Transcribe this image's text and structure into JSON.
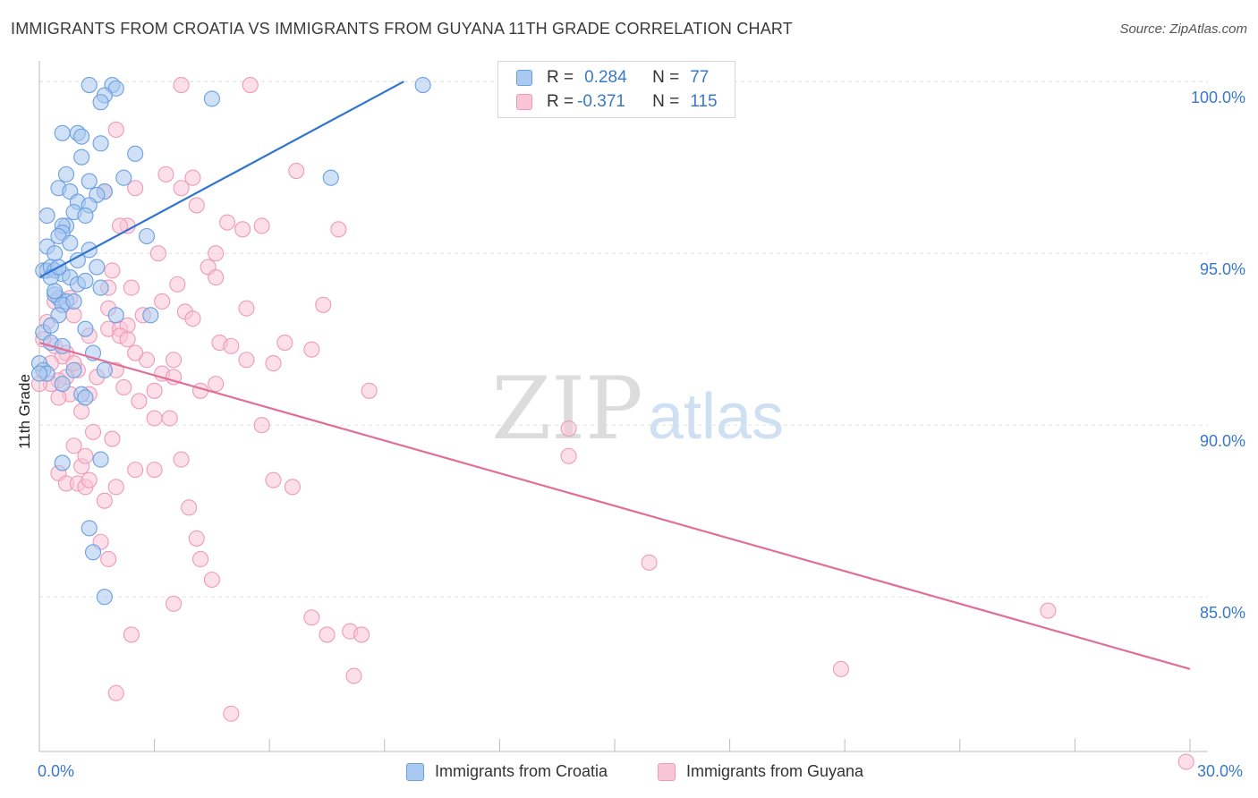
{
  "title": "IMMIGRANTS FROM CROATIA VS IMMIGRANTS FROM GUYANA 11TH GRADE CORRELATION CHART",
  "source": "Source: ZipAtlas.com",
  "watermark": {
    "zip": "ZIP",
    "atlas": "atlas"
  },
  "legend": {
    "r_label": "R =",
    "n_label": "N =",
    "rows": [
      {
        "r": "0.284",
        "n": "77",
        "color": "#a9c9f0",
        "stroke": "#6a9fe0"
      },
      {
        "r": "-0.371",
        "n": "115",
        "color": "#f9c4d6",
        "stroke": "#ee9ab8"
      }
    ]
  },
  "chart_data": {
    "type": "scatter",
    "title": "IMMIGRANTS FROM CROATIA VS IMMIGRANTS FROM GUYANA 11TH GRADE CORRELATION CHART",
    "xlabel": "",
    "ylabel": "11th Grade",
    "xlim": [
      0,
      30
    ],
    "ylim": [
      80.5,
      100.5
    ],
    "x_tick_labels": [
      "0.0%",
      "30.0%"
    ],
    "y_ticks": [
      85,
      90,
      95,
      100
    ],
    "y_tick_labels": [
      "85.0%",
      "90.0%",
      "95.0%",
      "100.0%"
    ],
    "grid": true,
    "legend_position": "top-center",
    "series": [
      {
        "name": "Immigrants from Croatia",
        "color": "#6a9fe0",
        "fill": "#a9c9f0",
        "trend_color": "#2f74d0",
        "trend": {
          "x": [
            0.0,
            9.5
          ],
          "y": [
            94.3,
            100.0
          ]
        },
        "points": [
          [
            1.3,
            99.9
          ],
          [
            1.9,
            99.9
          ],
          [
            2.0,
            99.8
          ],
          [
            1.7,
            99.6
          ],
          [
            1.6,
            99.4
          ],
          [
            4.5,
            99.5
          ],
          [
            10.0,
            99.9
          ],
          [
            1.0,
            98.5
          ],
          [
            1.1,
            98.4
          ],
          [
            1.6,
            98.2
          ],
          [
            0.6,
            98.5
          ],
          [
            2.5,
            97.9
          ],
          [
            1.1,
            97.8
          ],
          [
            0.7,
            97.3
          ],
          [
            1.3,
            97.1
          ],
          [
            7.6,
            97.2
          ],
          [
            2.2,
            97.2
          ],
          [
            0.5,
            96.9
          ],
          [
            1.7,
            96.8
          ],
          [
            0.8,
            96.8
          ],
          [
            1.5,
            96.7
          ],
          [
            1.0,
            96.5
          ],
          [
            1.3,
            96.4
          ],
          [
            0.9,
            96.2
          ],
          [
            1.2,
            96.1
          ],
          [
            0.2,
            96.1
          ],
          [
            0.7,
            95.8
          ],
          [
            0.6,
            95.8
          ],
          [
            0.6,
            95.6
          ],
          [
            0.5,
            95.5
          ],
          [
            2.8,
            95.5
          ],
          [
            0.2,
            95.2
          ],
          [
            1.3,
            95.1
          ],
          [
            0.4,
            95.0
          ],
          [
            1.0,
            94.8
          ],
          [
            0.1,
            94.5
          ],
          [
            0.2,
            94.5
          ],
          [
            0.3,
            94.6
          ],
          [
            0.4,
            94.5
          ],
          [
            0.6,
            94.4
          ],
          [
            0.8,
            94.3
          ],
          [
            1.0,
            94.1
          ],
          [
            1.6,
            94.0
          ],
          [
            0.5,
            93.7
          ],
          [
            0.7,
            93.6
          ],
          [
            0.4,
            93.8
          ],
          [
            0.6,
            93.5
          ],
          [
            0.5,
            93.2
          ],
          [
            2.0,
            93.2
          ],
          [
            2.9,
            93.2
          ],
          [
            0.1,
            92.7
          ],
          [
            0.3,
            92.4
          ],
          [
            0.6,
            92.3
          ],
          [
            1.4,
            92.1
          ],
          [
            0.0,
            91.8
          ],
          [
            0.1,
            91.6
          ],
          [
            0.9,
            91.6
          ],
          [
            1.7,
            91.6
          ],
          [
            0.6,
            91.2
          ],
          [
            1.1,
            90.9
          ],
          [
            1.2,
            90.8
          ],
          [
            0.6,
            88.9
          ],
          [
            1.6,
            89.0
          ],
          [
            1.3,
            87.0
          ],
          [
            1.4,
            86.3
          ],
          [
            1.7,
            85.0
          ],
          [
            0.2,
            91.5
          ],
          [
            0.3,
            94.3
          ],
          [
            0.5,
            94.6
          ],
          [
            1.2,
            94.2
          ],
          [
            0.8,
            95.3
          ],
          [
            1.5,
            94.6
          ],
          [
            0.4,
            93.9
          ],
          [
            0.3,
            92.9
          ],
          [
            0.9,
            93.6
          ],
          [
            1.2,
            92.8
          ],
          [
            0.0,
            91.5
          ]
        ]
      },
      {
        "name": "Immigrants from Guyana",
        "color": "#ee9ab8",
        "fill": "#f9c4d6",
        "trend_color": "#e06f98",
        "trend": {
          "x": [
            0.0,
            30.0
          ],
          "y": [
            92.4,
            82.9
          ]
        },
        "points": [
          [
            3.7,
            99.9
          ],
          [
            5.5,
            99.9
          ],
          [
            2.0,
            98.6
          ],
          [
            3.3,
            97.3
          ],
          [
            4.0,
            97.2
          ],
          [
            6.7,
            97.4
          ],
          [
            2.5,
            96.9
          ],
          [
            3.7,
            96.9
          ],
          [
            4.1,
            96.4
          ],
          [
            1.7,
            96.8
          ],
          [
            4.9,
            95.9
          ],
          [
            5.8,
            95.8
          ],
          [
            7.8,
            95.7
          ],
          [
            2.3,
            95.8
          ],
          [
            2.1,
            95.8
          ],
          [
            3.1,
            95.0
          ],
          [
            4.6,
            95.0
          ],
          [
            5.3,
            95.7
          ],
          [
            1.9,
            94.5
          ],
          [
            4.4,
            94.6
          ],
          [
            4.6,
            94.3
          ],
          [
            3.6,
            94.1
          ],
          [
            2.4,
            94.0
          ],
          [
            1.8,
            94.0
          ],
          [
            3.2,
            93.6
          ],
          [
            7.4,
            93.5
          ],
          [
            5.4,
            93.4
          ],
          [
            3.8,
            93.3
          ],
          [
            4.0,
            93.1
          ],
          [
            0.9,
            93.2
          ],
          [
            1.8,
            92.8
          ],
          [
            2.1,
            92.8
          ],
          [
            2.3,
            92.9
          ],
          [
            2.1,
            92.6
          ],
          [
            4.7,
            92.4
          ],
          [
            5.0,
            92.3
          ],
          [
            6.4,
            92.4
          ],
          [
            7.1,
            92.2
          ],
          [
            2.3,
            92.5
          ],
          [
            1.3,
            92.6
          ],
          [
            0.4,
            92.3
          ],
          [
            0.7,
            92.1
          ],
          [
            2.8,
            91.9
          ],
          [
            3.5,
            91.9
          ],
          [
            5.4,
            91.9
          ],
          [
            6.1,
            91.8
          ],
          [
            1.0,
            91.6
          ],
          [
            2.0,
            91.6
          ],
          [
            3.2,
            91.5
          ],
          [
            0.7,
            91.4
          ],
          [
            0.5,
            91.3
          ],
          [
            0.3,
            91.2
          ],
          [
            4.6,
            91.2
          ],
          [
            2.2,
            91.1
          ],
          [
            3.0,
            91.0
          ],
          [
            4.2,
            91.0
          ],
          [
            8.6,
            91.0
          ],
          [
            0.8,
            90.9
          ],
          [
            1.3,
            90.9
          ],
          [
            2.6,
            90.7
          ],
          [
            1.1,
            90.4
          ],
          [
            3.0,
            90.2
          ],
          [
            3.4,
            90.2
          ],
          [
            5.8,
            90.0
          ],
          [
            1.4,
            89.8
          ],
          [
            1.9,
            89.6
          ],
          [
            0.9,
            89.4
          ],
          [
            3.7,
            89.0
          ],
          [
            13.8,
            89.9
          ],
          [
            13.8,
            89.1
          ],
          [
            0.5,
            88.6
          ],
          [
            1.1,
            88.8
          ],
          [
            2.5,
            88.7
          ],
          [
            3.0,
            88.7
          ],
          [
            0.7,
            88.3
          ],
          [
            1.0,
            88.3
          ],
          [
            1.2,
            88.2
          ],
          [
            1.3,
            88.4
          ],
          [
            2.0,
            88.2
          ],
          [
            6.1,
            88.4
          ],
          [
            6.6,
            88.2
          ],
          [
            1.7,
            87.8
          ],
          [
            3.9,
            87.6
          ],
          [
            1.6,
            86.6
          ],
          [
            4.1,
            86.7
          ],
          [
            4.2,
            86.1
          ],
          [
            1.8,
            86.1
          ],
          [
            15.9,
            86.0
          ],
          [
            4.5,
            85.5
          ],
          [
            3.5,
            84.8
          ],
          [
            7.1,
            84.4
          ],
          [
            8.1,
            84.0
          ],
          [
            8.4,
            83.9
          ],
          [
            7.5,
            83.9
          ],
          [
            2.4,
            83.9
          ],
          [
            26.3,
            84.6
          ],
          [
            20.9,
            82.9
          ],
          [
            8.2,
            82.7
          ],
          [
            2.0,
            82.2
          ],
          [
            5.0,
            81.6
          ],
          [
            29.9,
            80.2
          ],
          [
            0.2,
            93.0
          ],
          [
            0.4,
            93.6
          ],
          [
            0.6,
            92.0
          ],
          [
            0.9,
            91.8
          ],
          [
            1.5,
            91.4
          ],
          [
            2.5,
            92.1
          ],
          [
            1.8,
            93.4
          ],
          [
            0.3,
            91.8
          ],
          [
            0.5,
            90.8
          ],
          [
            1.2,
            89.1
          ],
          [
            2.7,
            93.2
          ],
          [
            3.5,
            91.4
          ],
          [
            0.8,
            93.7
          ],
          [
            0.0,
            91.2
          ],
          [
            0.1,
            92.5
          ]
        ]
      }
    ]
  },
  "bottom_legend": [
    "Immigrants from Croatia",
    "Immigrants from Guyana"
  ]
}
